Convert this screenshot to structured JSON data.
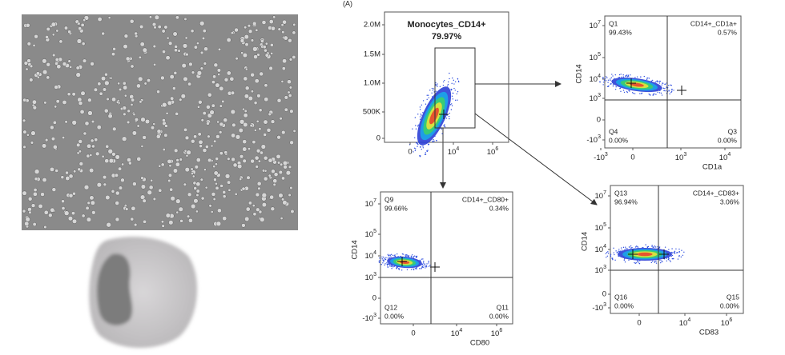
{
  "panel_label": "(A)",
  "plots": [
    {
      "title": "Monocytes_CD14+",
      "gate_percent": "79.97%",
      "yticks": [
        "2.0M",
        "1.5M",
        "1.0M",
        "500K",
        "0"
      ],
      "xticks": [
        "0",
        {
          "base": "10",
          "exp": "4"
        },
        {
          "base": "10",
          "exp": "6"
        }
      ]
    },
    {
      "x_label": "CD1a",
      "y_label": "CD14",
      "quadrants": [
        {
          "name": "Q1",
          "value": "99.43%"
        },
        {
          "name": "CD14+_CD1a+",
          "value": "0.57%"
        },
        {
          "name": "Q4",
          "value": "0.00%"
        },
        {
          "name": "Q3",
          "value": "0.00%"
        }
      ],
      "yticks": [
        {
          "base": "10",
          "exp": "7"
        },
        {
          "base": "10",
          "exp": "5"
        },
        {
          "base": "10",
          "exp": "4"
        },
        {
          "base": "10",
          "exp": "3"
        },
        "0",
        {
          "base": "-10",
          "exp": "3"
        }
      ],
      "xticks": [
        {
          "base": "-10",
          "exp": "3"
        },
        "0",
        {
          "base": "10",
          "exp": "3"
        },
        {
          "base": "10",
          "exp": "4"
        }
      ]
    },
    {
      "x_label": "CD80",
      "y_label": "CD14",
      "quadrants": [
        {
          "name": "Q9",
          "value": "99.66%"
        },
        {
          "name": "CD14+_CD80+",
          "value": "0.34%"
        },
        {
          "name": "Q12",
          "value": "0.00%"
        },
        {
          "name": "Q11",
          "value": "0.00%"
        }
      ],
      "yticks": [
        {
          "base": "10",
          "exp": "7"
        },
        {
          "base": "10",
          "exp": "5"
        },
        {
          "base": "10",
          "exp": "4"
        },
        {
          "base": "10",
          "exp": "3"
        },
        "0",
        {
          "base": "-10",
          "exp": "3"
        }
      ],
      "xticks": [
        "0",
        {
          "base": "10",
          "exp": "4"
        },
        {
          "base": "10",
          "exp": "6"
        }
      ]
    },
    {
      "x_label": "CD83",
      "y_label": "CD14",
      "quadrants": [
        {
          "name": "Q13",
          "value": "96.94%"
        },
        {
          "name": "CD14+_CD83+",
          "value": "3.06%"
        },
        {
          "name": "Q16",
          "value": "0.00%"
        },
        {
          "name": "Q15",
          "value": "0.00%"
        }
      ],
      "yticks": [
        {
          "base": "10",
          "exp": "7"
        },
        {
          "base": "10",
          "exp": "5"
        },
        {
          "base": "10",
          "exp": "4"
        },
        {
          "base": "10",
          "exp": "3"
        },
        "0",
        {
          "base": "-10",
          "exp": "3"
        }
      ],
      "xticks": [
        "0",
        {
          "base": "10",
          "exp": "4"
        },
        {
          "base": "10",
          "exp": "6"
        }
      ]
    }
  ]
}
